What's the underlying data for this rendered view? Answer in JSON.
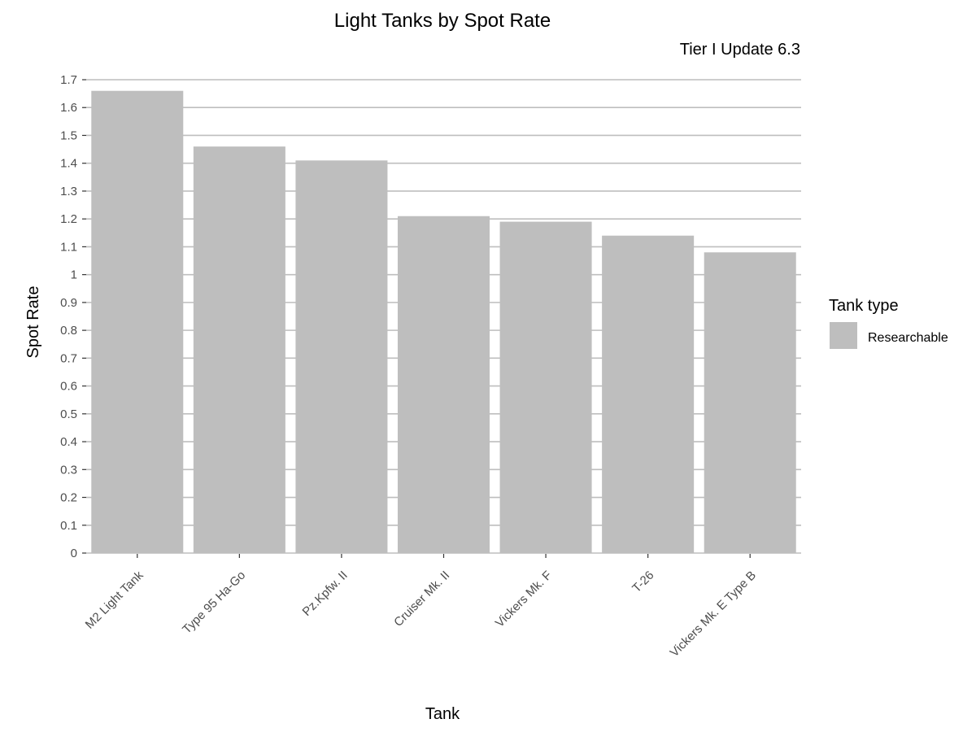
{
  "chart_data": {
    "type": "bar",
    "title": "Light Tanks by Spot Rate",
    "subtitle": "Tier I Update 6.3",
    "xlabel": "Tank",
    "ylabel": "Spot Rate",
    "categories": [
      "M2 Light Tank",
      "Type 95 Ha-Go",
      "Pz.Kpfw. II",
      "Cruiser Mk. II",
      "Vickers Mk. F",
      "T-26",
      "Vickers Mk. E Type B"
    ],
    "series": [
      {
        "name": "Researchable",
        "values": [
          1.66,
          1.46,
          1.41,
          1.21,
          1.19,
          1.14,
          1.08
        ]
      }
    ],
    "ylim": [
      0,
      1.7
    ],
    "yticks": [
      "0",
      "0.1",
      "0.2",
      "0.3",
      "0.4",
      "0.5",
      "0.6",
      "0.7",
      "0.8",
      "0.9",
      "1",
      "1.1",
      "1.2",
      "1.3",
      "1.4",
      "1.5",
      "1.6",
      "1.7"
    ],
    "grid": true,
    "legend": {
      "title": "Tank type",
      "position": "right"
    },
    "colors": {
      "bar": "#bebebe",
      "grid": "#bebebe",
      "background": "#ffffff"
    }
  }
}
